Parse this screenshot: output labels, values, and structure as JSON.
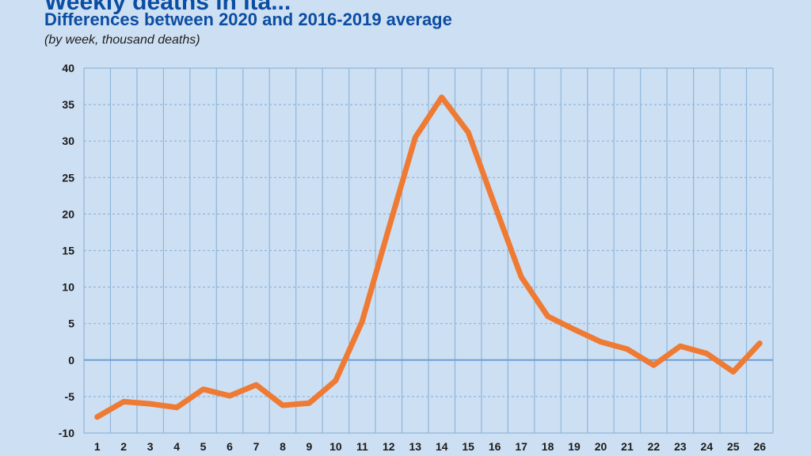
{
  "chart_data": {
    "type": "line",
    "title": "Weekly deaths in Ita...",
    "subtitle": "Differences between  2020 and 2016-2019 average",
    "unit_note": "(by week, thousand deaths)",
    "xlabel": "",
    "ylabel": "",
    "x": [
      1,
      2,
      3,
      4,
      5,
      6,
      7,
      8,
      9,
      10,
      11,
      12,
      13,
      14,
      15,
      16,
      17,
      18,
      19,
      20,
      21,
      22,
      23,
      24,
      25,
      26
    ],
    "series": [
      {
        "values": [
          -7.8,
          -5.7,
          -6.0,
          -6.5,
          -4.0,
          -4.9,
          -3.4,
          -6.2,
          -5.9,
          -2.8,
          5.3,
          18.0,
          30.5,
          36.0,
          31.2,
          21.2,
          11.4,
          6.0,
          4.2,
          2.5,
          1.5,
          -0.7,
          1.9,
          0.9,
          -1.6,
          2.3
        ]
      }
    ],
    "ylim": [
      -10,
      40
    ],
    "yticks": [
      -10,
      -5,
      0,
      5,
      10,
      15,
      20,
      25,
      30,
      35,
      40
    ],
    "grid": true,
    "colors": {
      "background": "#cddff2",
      "line": "#ee7a33",
      "grid": "#8fb6db",
      "zero_line": "#6c9fd1",
      "title": "#0b4da2"
    }
  }
}
